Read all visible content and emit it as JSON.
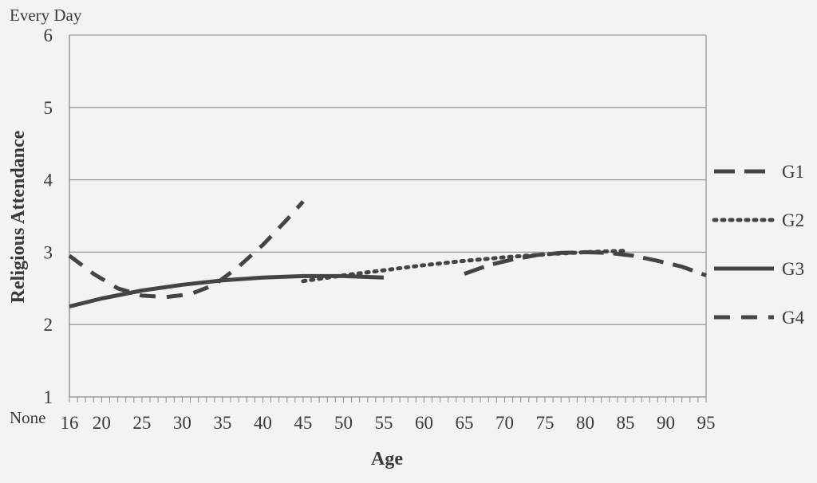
{
  "chart_data": {
    "type": "line",
    "xlabel": "Age",
    "ylabel": "Religious Attendance",
    "y_top_label": "Every Day",
    "y_bottom_label": "None",
    "xlim": [
      16,
      95
    ],
    "ylim": [
      1,
      6
    ],
    "x_ticks": [
      16,
      20,
      25,
      30,
      35,
      40,
      45,
      50,
      55,
      60,
      65,
      70,
      75,
      80,
      85,
      90,
      95
    ],
    "y_ticks": [
      1,
      2,
      3,
      4,
      5,
      6
    ],
    "grid": "horizontal",
    "legend_position": "right",
    "series": [
      {
        "name": "G1",
        "style": "long-dash",
        "x": [
          65,
          68,
          71,
          74,
          77,
          80,
          83,
          86,
          89,
          92,
          95
        ],
        "y": [
          2.7,
          2.82,
          2.9,
          2.96,
          2.99,
          3.0,
          2.99,
          2.95,
          2.88,
          2.8,
          2.68
        ]
      },
      {
        "name": "G2",
        "style": "dotted",
        "x": [
          45,
          50,
          55,
          60,
          65,
          70,
          75,
          80,
          85
        ],
        "y": [
          2.6,
          2.68,
          2.75,
          2.82,
          2.88,
          2.93,
          2.97,
          3.0,
          3.02
        ]
      },
      {
        "name": "G3",
        "style": "solid",
        "x": [
          16,
          20,
          25,
          30,
          35,
          40,
          45,
          50,
          55
        ],
        "y": [
          2.25,
          2.36,
          2.47,
          2.55,
          2.61,
          2.65,
          2.67,
          2.67,
          2.65
        ]
      },
      {
        "name": "G4",
        "style": "dash",
        "x": [
          16,
          19,
          22,
          25,
          28,
          31,
          34,
          37,
          40,
          43,
          45
        ],
        "y": [
          2.95,
          2.7,
          2.5,
          2.4,
          2.38,
          2.42,
          2.55,
          2.8,
          3.1,
          3.45,
          3.7
        ]
      }
    ],
    "colors": {
      "line": "#444444",
      "grid": "#9a9a9a",
      "axis": "#8a8a8a"
    }
  }
}
